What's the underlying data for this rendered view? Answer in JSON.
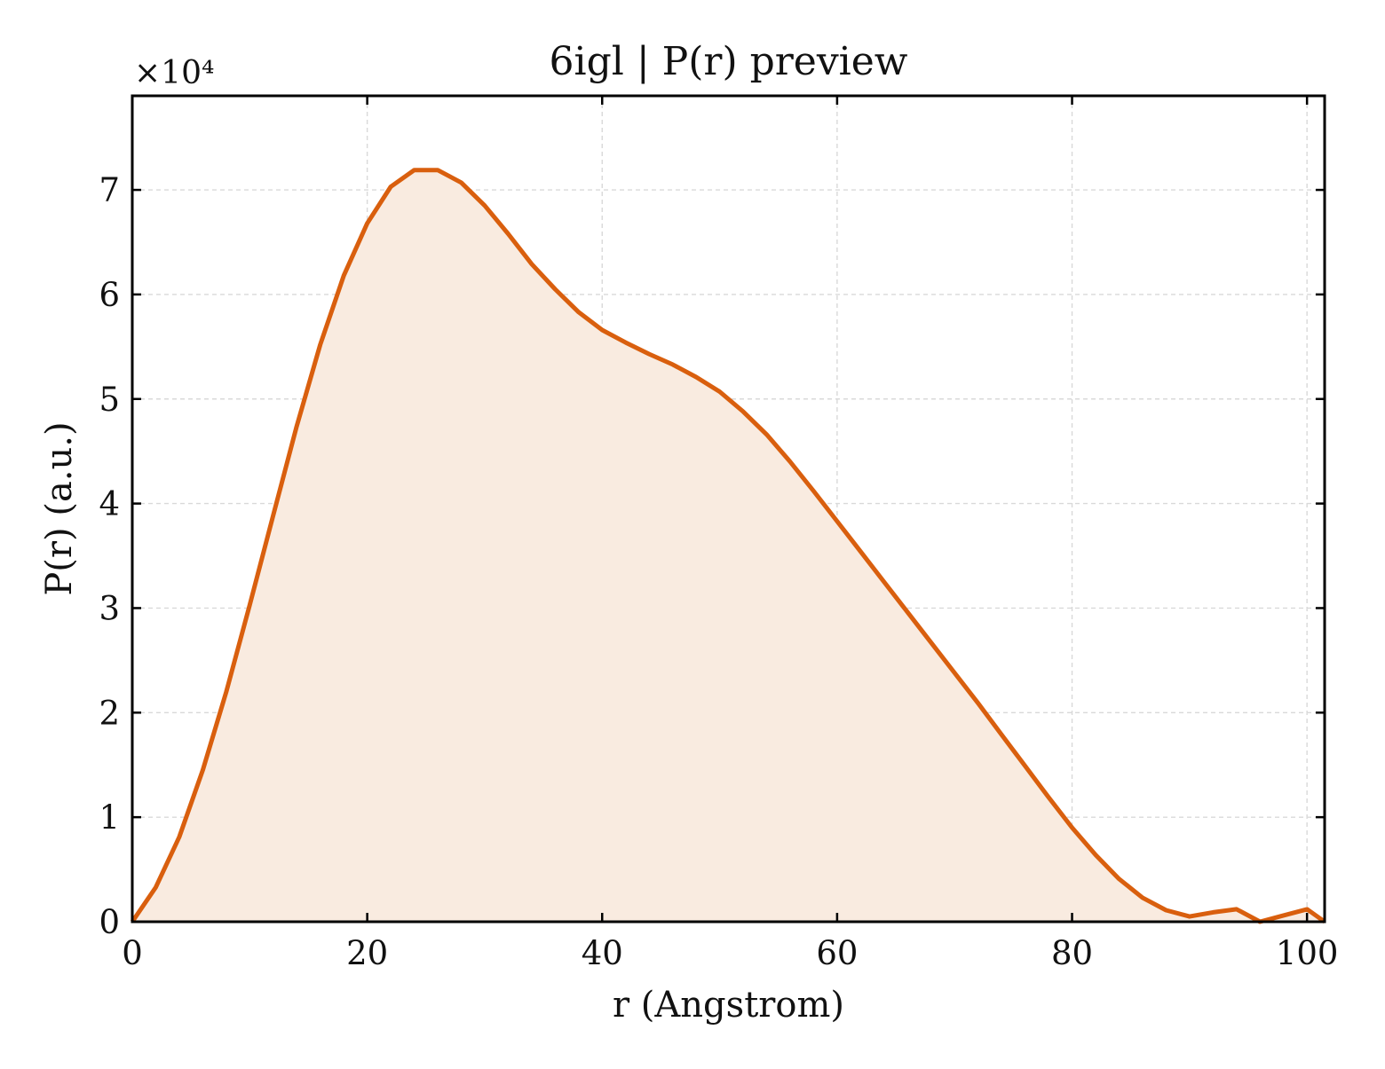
{
  "chart_data": {
    "type": "area",
    "title": "6igl | P(r) preview",
    "xlabel": "r (Angstrom)",
    "ylabel": "P(r) (a.u.)",
    "y_scale_label": "×10⁴",
    "y_scale_factor": 10000,
    "xlim": [
      0,
      101.5
    ],
    "ylim": [
      0,
      79000
    ],
    "x_ticks": [
      0,
      20,
      40,
      60,
      80,
      100
    ],
    "x_tick_labels": [
      "0",
      "20",
      "40",
      "60",
      "80",
      "100"
    ],
    "y_ticks": [
      0,
      10000,
      20000,
      30000,
      40000,
      50000,
      60000,
      70000
    ],
    "y_tick_labels": [
      "0",
      "1",
      "2",
      "3",
      "4",
      "5",
      "6",
      "7"
    ],
    "grid": true,
    "line_color": "#d95f0e",
    "fill_color": "#f9ebe0",
    "series": [
      {
        "x": [
          0,
          2,
          4,
          6,
          8,
          10,
          12,
          14,
          16,
          18,
          20,
          22,
          24,
          26,
          28,
          30,
          32,
          34,
          36,
          38,
          40,
          42,
          44,
          46,
          48,
          50,
          52,
          54,
          56,
          58,
          60,
          62,
          64,
          66,
          68,
          70,
          72,
          74,
          76,
          78,
          80,
          82,
          84,
          86,
          88,
          90,
          92,
          94,
          96,
          98,
          100,
          101.5
        ],
        "y": [
          0,
          3300,
          8100,
          14500,
          22000,
          30300,
          38900,
          47400,
          55200,
          61800,
          66800,
          70300,
          71900,
          71900,
          70700,
          68500,
          65800,
          62900,
          60500,
          58300,
          56600,
          55400,
          54300,
          53300,
          52100,
          50700,
          48800,
          46600,
          44000,
          41200,
          38300,
          35400,
          32500,
          29600,
          26700,
          23800,
          20900,
          17900,
          14900,
          11900,
          9000,
          6400,
          4100,
          2300,
          1100,
          500,
          900,
          1200,
          0,
          600,
          1200,
          0
        ]
      }
    ]
  }
}
